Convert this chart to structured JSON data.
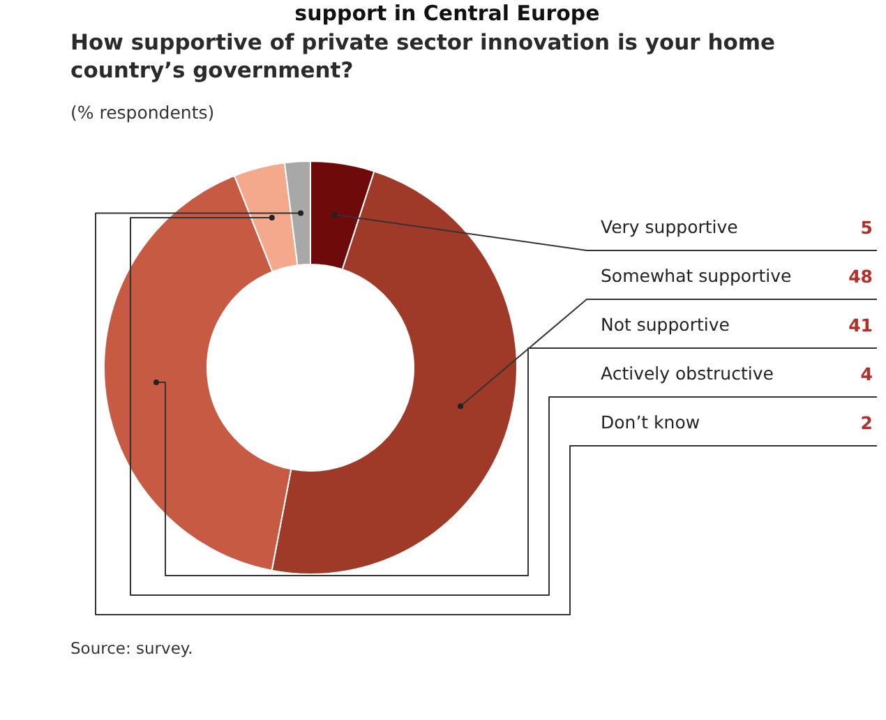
{
  "chart_data": {
    "type": "donut",
    "title": "How supportive of private sector innovation is your home country’s government?",
    "subtitle": "(% respondents)",
    "annotations": [
      "support in Central Europe",
      "Source: survey."
    ],
    "categories": [
      "Very supportive",
      "Somewhat supportive",
      "Not supportive",
      "Actively obstructive",
      "Don’t know"
    ],
    "values": [
      5,
      48,
      41,
      4,
      2
    ],
    "colors": [
      "#6e0a0a",
      "#a03a28",
      "#c65a42",
      "#f4a88c",
      "#a8a8a8"
    ],
    "data_labels": true
  }
}
